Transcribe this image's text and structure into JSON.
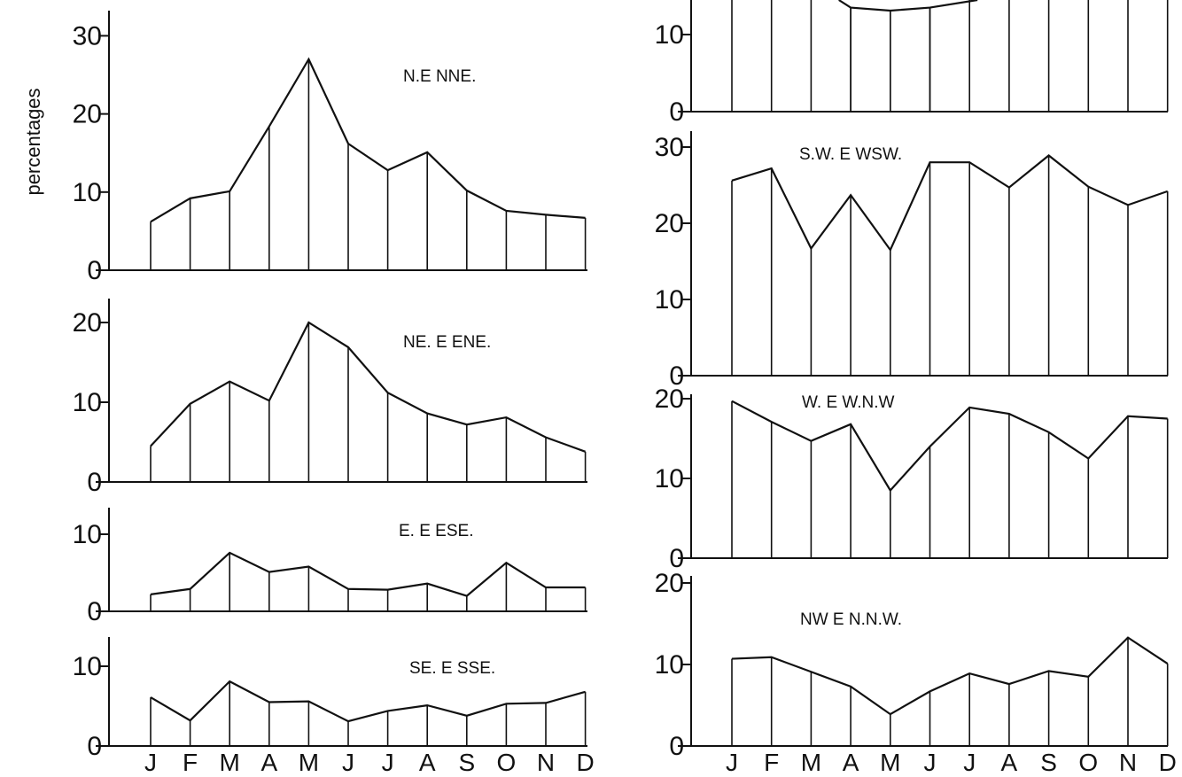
{
  "chart_data": {
    "type": "line",
    "ylabel": "percentages",
    "x": [
      "J",
      "F",
      "M",
      "A",
      "M",
      "J",
      "J",
      "A",
      "S",
      "O",
      "N",
      "D"
    ],
    "panels": [
      {
        "column": "left",
        "label": "N.E NNE.",
        "yticks": [
          "0",
          "10",
          "20",
          "30"
        ],
        "ytick_values": [
          0,
          10,
          20,
          30
        ],
        "values": [
          6.2,
          9.2,
          10.1,
          18.4,
          27.0,
          16.2,
          12.8,
          15.1,
          10.2,
          7.6,
          7.1,
          6.7
        ]
      },
      {
        "column": "left",
        "label": "NE. E ENE.",
        "yticks": [
          "0",
          "10",
          "20"
        ],
        "ytick_values": [
          0,
          10,
          20
        ],
        "values": [
          4.5,
          9.8,
          12.6,
          10.2,
          20.0,
          16.9,
          11.2,
          8.6,
          7.2,
          8.1,
          5.6,
          3.8
        ]
      },
      {
        "column": "left",
        "label": "E. E ESE.",
        "yticks": [
          "0",
          "10"
        ],
        "ytick_values": [
          0,
          10
        ],
        "values": [
          2.2,
          2.9,
          7.6,
          5.1,
          5.8,
          2.9,
          2.8,
          3.6,
          2.0,
          6.3,
          3.1,
          3.1
        ]
      },
      {
        "column": "left",
        "label": "SE. E SSE.",
        "yticks": [
          "0",
          "10"
        ],
        "ytick_values": [
          0,
          10
        ],
        "values": [
          6.1,
          3.2,
          8.1,
          5.5,
          5.6,
          3.1,
          4.4,
          5.1,
          3.8,
          5.3,
          5.4,
          6.8
        ]
      },
      {
        "column": "right",
        "label": "",
        "yticks": [
          "0",
          "10"
        ],
        "ytick_values": [
          0,
          10
        ],
        "values": [
          null,
          null,
          null,
          13.5,
          13.1,
          13.5,
          null,
          null,
          null,
          null,
          null,
          null
        ]
      },
      {
        "column": "right",
        "label": "S.W. E WSW.",
        "yticks": [
          "0",
          "10",
          "20",
          "30"
        ],
        "ytick_values": [
          0,
          10,
          20,
          30
        ],
        "values": [
          25.6,
          27.2,
          16.7,
          23.7,
          16.5,
          28.0,
          28.0,
          24.7,
          28.9,
          24.8,
          22.4,
          24.2
        ]
      },
      {
        "column": "right",
        "label": "W. E W.N.W",
        "yticks": [
          "0",
          "10",
          "20"
        ],
        "ytick_values": [
          0,
          10,
          20
        ],
        "values": [
          19.7,
          17.1,
          14.7,
          16.8,
          8.5,
          14.0,
          18.9,
          18.1,
          15.8,
          12.5,
          17.8,
          17.5
        ]
      },
      {
        "column": "right",
        "label": "NW E N.N.W.",
        "yticks": [
          "0",
          "10",
          "20"
        ],
        "ytick_values": [
          0,
          10,
          20
        ],
        "values": [
          10.7,
          10.9,
          9.1,
          7.3,
          3.9,
          6.7,
          8.9,
          7.6,
          9.2,
          8.5,
          13.3,
          10.1
        ]
      }
    ]
  }
}
